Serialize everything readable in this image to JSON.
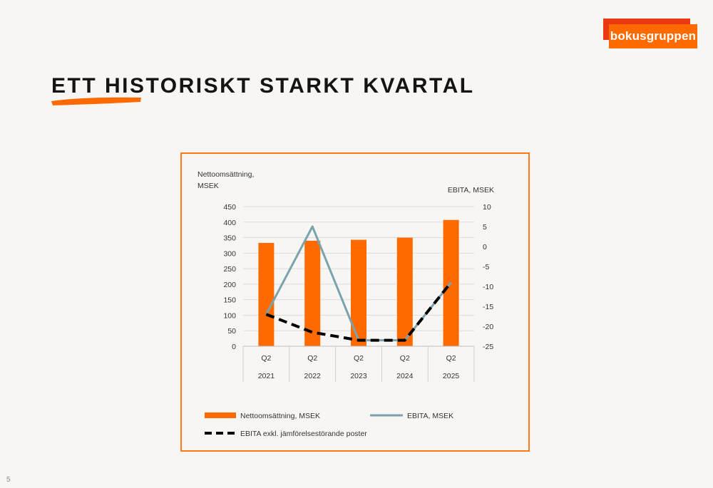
{
  "brand": {
    "logo_text": "bokusgruppen",
    "colors": {
      "orange": "#ff6a00",
      "red": "#ea3a14"
    }
  },
  "slide": {
    "title": "ETT HISTORISKT STARKT KVARTAL",
    "page_number": "5"
  },
  "chart_data": {
    "type": "bar",
    "categories": [
      "Q2",
      "Q2",
      "Q2",
      "Q2",
      "Q2"
    ],
    "category_groups": [
      "2021",
      "2022",
      "2023",
      "2024",
      "2025"
    ],
    "series": [
      {
        "name": "Nettoomsättning, MSEK",
        "type": "bar",
        "axis": "left",
        "color": "#ff6a00",
        "values": [
          333,
          340,
          343,
          350,
          407
        ]
      },
      {
        "name": "EBITA, MSEK",
        "type": "line",
        "axis": "right",
        "color": "#7ba3ad",
        "values": [
          -17,
          5,
          -23.5,
          -23.5,
          -9
        ]
      },
      {
        "name": "EBITA exkl. jämförelsestörande poster",
        "type": "line",
        "axis": "right",
        "style": "dashed",
        "color": "#000000",
        "values": [
          -17,
          -21.5,
          -23.5,
          -23.5,
          -9
        ]
      }
    ],
    "ylabel_left": "Nettoomsättning,\nMSEK",
    "ylabel_left_lines": [
      "Nettoomsättning,",
      "MSEK"
    ],
    "ylabel_right": "EBITA, MSEK",
    "ylim_left": [
      0,
      450
    ],
    "yticks_left": [
      0,
      50,
      100,
      150,
      200,
      250,
      300,
      350,
      400,
      450
    ],
    "ylim_right": [
      -25,
      10
    ],
    "yticks_right": [
      -25,
      -20,
      -15,
      -10,
      -5,
      0,
      5,
      10
    ],
    "grid": true,
    "legend_position": "bottom"
  }
}
